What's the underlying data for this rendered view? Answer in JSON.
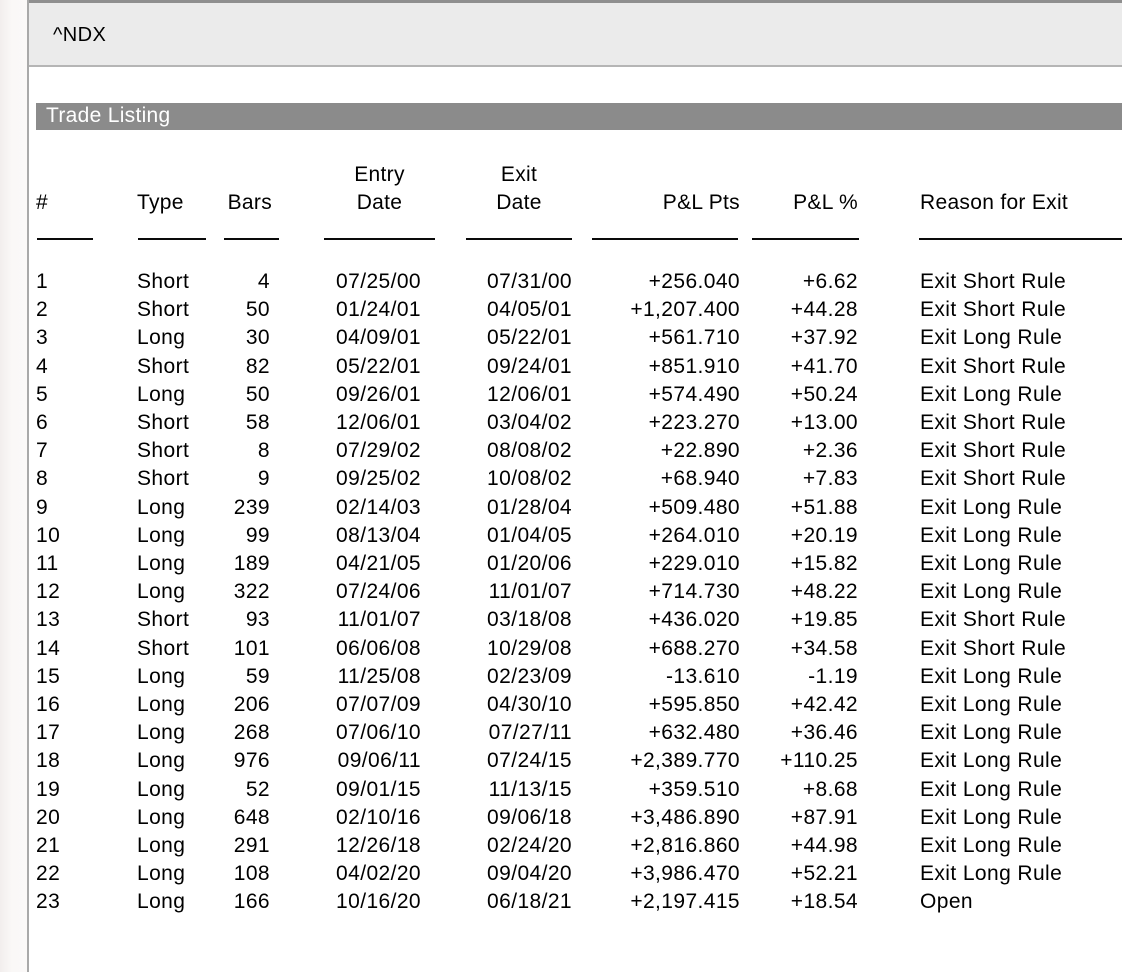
{
  "window": {
    "symbol": "^NDX"
  },
  "report": {
    "title": "Trade Listing"
  },
  "colors": {
    "section_bar_bg": "#8b8b8b",
    "section_title_text": "#ffffff",
    "titlebar_bg": "#ebebeb",
    "titlebar_top_border": "#8f8f8f",
    "titlebar_bottom_border": "#b5b5b5",
    "left_strip_border": "#a9a9a9",
    "text": "#000000"
  },
  "table": {
    "headers": {
      "num": "#",
      "type": "Type",
      "bars": "Bars",
      "entry_line1": "Entry",
      "entry_line2": "Date",
      "exit_line1": "Exit",
      "exit_line2": "Date",
      "pl_pts": "P&L Pts",
      "pl_pct": "P&L %",
      "reason": "Reason for Exit"
    },
    "rows": [
      {
        "num": "1",
        "type": "Short",
        "bars": "4",
        "entry": "07/25/00",
        "exit": "07/31/00",
        "pl_pts": "+256.040",
        "pl_pct": "+6.62",
        "reason": "Exit Short Rule"
      },
      {
        "num": "2",
        "type": "Short",
        "bars": "50",
        "entry": "01/24/01",
        "exit": "04/05/01",
        "pl_pts": "+1,207.400",
        "pl_pct": "+44.28",
        "reason": "Exit Short Rule"
      },
      {
        "num": "3",
        "type": "Long",
        "bars": "30",
        "entry": "04/09/01",
        "exit": "05/22/01",
        "pl_pts": "+561.710",
        "pl_pct": "+37.92",
        "reason": "Exit Long Rule"
      },
      {
        "num": "4",
        "type": "Short",
        "bars": "82",
        "entry": "05/22/01",
        "exit": "09/24/01",
        "pl_pts": "+851.910",
        "pl_pct": "+41.70",
        "reason": "Exit Short Rule"
      },
      {
        "num": "5",
        "type": "Long",
        "bars": "50",
        "entry": "09/26/01",
        "exit": "12/06/01",
        "pl_pts": "+574.490",
        "pl_pct": "+50.24",
        "reason": "Exit Long Rule"
      },
      {
        "num": "6",
        "type": "Short",
        "bars": "58",
        "entry": "12/06/01",
        "exit": "03/04/02",
        "pl_pts": "+223.270",
        "pl_pct": "+13.00",
        "reason": "Exit Short Rule"
      },
      {
        "num": "7",
        "type": "Short",
        "bars": "8",
        "entry": "07/29/02",
        "exit": "08/08/02",
        "pl_pts": "+22.890",
        "pl_pct": "+2.36",
        "reason": "Exit Short Rule"
      },
      {
        "num": "8",
        "type": "Short",
        "bars": "9",
        "entry": "09/25/02",
        "exit": "10/08/02",
        "pl_pts": "+68.940",
        "pl_pct": "+7.83",
        "reason": "Exit Short Rule"
      },
      {
        "num": "9",
        "type": "Long",
        "bars": "239",
        "entry": "02/14/03",
        "exit": "01/28/04",
        "pl_pts": "+509.480",
        "pl_pct": "+51.88",
        "reason": "Exit Long Rule"
      },
      {
        "num": "10",
        "type": "Long",
        "bars": "99",
        "entry": "08/13/04",
        "exit": "01/04/05",
        "pl_pts": "+264.010",
        "pl_pct": "+20.19",
        "reason": "Exit Long Rule"
      },
      {
        "num": "11",
        "type": "Long",
        "bars": "189",
        "entry": "04/21/05",
        "exit": "01/20/06",
        "pl_pts": "+229.010",
        "pl_pct": "+15.82",
        "reason": "Exit Long Rule"
      },
      {
        "num": "12",
        "type": "Long",
        "bars": "322",
        "entry": "07/24/06",
        "exit": "11/01/07",
        "pl_pts": "+714.730",
        "pl_pct": "+48.22",
        "reason": "Exit Long Rule"
      },
      {
        "num": "13",
        "type": "Short",
        "bars": "93",
        "entry": "11/01/07",
        "exit": "03/18/08",
        "pl_pts": "+436.020",
        "pl_pct": "+19.85",
        "reason": "Exit Short Rule"
      },
      {
        "num": "14",
        "type": "Short",
        "bars": "101",
        "entry": "06/06/08",
        "exit": "10/29/08",
        "pl_pts": "+688.270",
        "pl_pct": "+34.58",
        "reason": "Exit Short Rule"
      },
      {
        "num": "15",
        "type": "Long",
        "bars": "59",
        "entry": "11/25/08",
        "exit": "02/23/09",
        "pl_pts": "-13.610",
        "pl_pct": "-1.19",
        "reason": "Exit Long Rule"
      },
      {
        "num": "16",
        "type": "Long",
        "bars": "206",
        "entry": "07/07/09",
        "exit": "04/30/10",
        "pl_pts": "+595.850",
        "pl_pct": "+42.42",
        "reason": "Exit Long Rule"
      },
      {
        "num": "17",
        "type": "Long",
        "bars": "268",
        "entry": "07/06/10",
        "exit": "07/27/11",
        "pl_pts": "+632.480",
        "pl_pct": "+36.46",
        "reason": "Exit Long Rule"
      },
      {
        "num": "18",
        "type": "Long",
        "bars": "976",
        "entry": "09/06/11",
        "exit": "07/24/15",
        "pl_pts": "+2,389.770",
        "pl_pct": "+110.25",
        "reason": "Exit Long Rule"
      },
      {
        "num": "19",
        "type": "Long",
        "bars": "52",
        "entry": "09/01/15",
        "exit": "11/13/15",
        "pl_pts": "+359.510",
        "pl_pct": "+8.68",
        "reason": "Exit Long Rule"
      },
      {
        "num": "20",
        "type": "Long",
        "bars": "648",
        "entry": "02/10/16",
        "exit": "09/06/18",
        "pl_pts": "+3,486.890",
        "pl_pct": "+87.91",
        "reason": "Exit Long Rule"
      },
      {
        "num": "21",
        "type": "Long",
        "bars": "291",
        "entry": "12/26/18",
        "exit": "02/24/20",
        "pl_pts": "+2,816.860",
        "pl_pct": "+44.98",
        "reason": "Exit Long Rule"
      },
      {
        "num": "22",
        "type": "Long",
        "bars": "108",
        "entry": "04/02/20",
        "exit": "09/04/20",
        "pl_pts": "+3,986.470",
        "pl_pct": "+52.21",
        "reason": "Exit Long Rule"
      },
      {
        "num": "23",
        "type": "Long",
        "bars": "166",
        "entry": "10/16/20",
        "exit": "06/18/21",
        "pl_pts": "+2,197.415",
        "pl_pct": "+18.54",
        "reason": "Open"
      }
    ]
  }
}
